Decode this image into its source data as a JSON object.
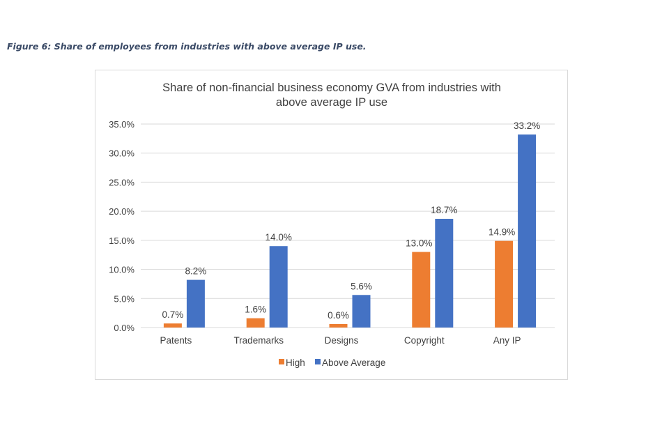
{
  "caption": "Figure 6: Share of employees from industries with above average IP use.",
  "chart_data": {
    "type": "bar",
    "title_lines": [
      "Share of non-financial business economy GVA from industries with",
      "above average IP use"
    ],
    "categories": [
      "Patents",
      "Trademarks",
      "Designs",
      "Copyright",
      "Any IP"
    ],
    "series": [
      {
        "name": "High",
        "color": "#ed7d31",
        "values": [
          0.7,
          1.6,
          0.6,
          13.0,
          14.9
        ],
        "labels": [
          "0.7%",
          "1.6%",
          "0.6%",
          "13.0%",
          "14.9%"
        ]
      },
      {
        "name": "Above Average",
        "color": "#4472c4",
        "values": [
          8.2,
          14.0,
          5.6,
          18.7,
          33.2
        ],
        "labels": [
          "8.2%",
          "14.0%",
          "5.6%",
          "18.7%",
          "33.2%"
        ]
      }
    ],
    "yticks": [
      "0.0%",
      "5.0%",
      "10.0%",
      "15.0%",
      "20.0%",
      "25.0%",
      "30.0%",
      "35.0%"
    ],
    "ylim": [
      0,
      35
    ],
    "grid": true,
    "legend": "bottom"
  }
}
